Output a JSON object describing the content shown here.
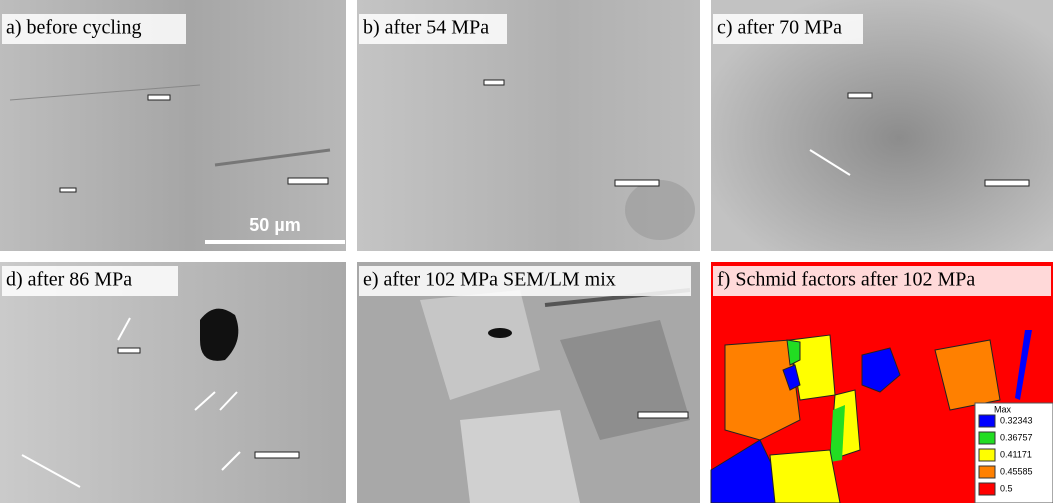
{
  "panels": [
    {
      "label": "a) before cycling"
    },
    {
      "label": "b) after 54 MPa"
    },
    {
      "label": "c) after 70 MPa"
    },
    {
      "label": "d) after 86 MPa"
    },
    {
      "label": "e) after 102 MPa SEM/LM mix"
    },
    {
      "label": "f) Schmid factors after 102 MPa"
    }
  ],
  "scale_bar": "50 µm",
  "legend": {
    "title": "Max",
    "entries": [
      {
        "value": 0.32343,
        "color": "#0000ff"
      },
      {
        "value": 0.36757,
        "color": "#22dd22"
      },
      {
        "value": 0.41171,
        "color": "#ffff00"
      },
      {
        "value": 0.45585,
        "color": "#ff8000"
      },
      {
        "value": 0.5,
        "color": "#ff0000"
      }
    ]
  }
}
